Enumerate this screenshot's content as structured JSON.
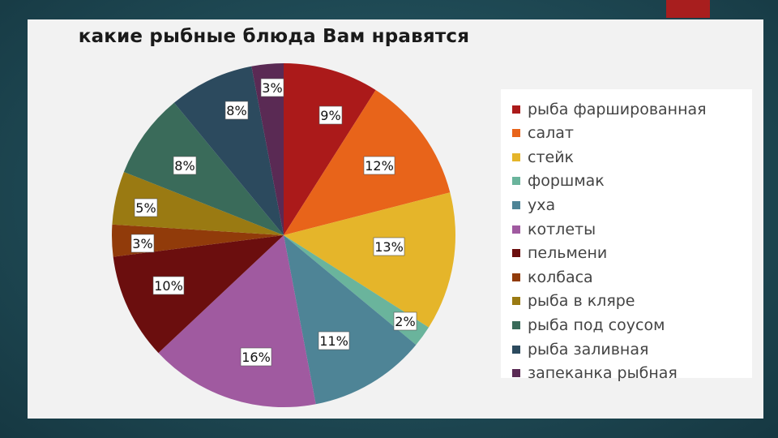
{
  "chart_data": {
    "type": "pie",
    "title": "какие рыбные блюда Вам нравятся",
    "slices": [
      {
        "name": "рыба фаршированная",
        "value": 9,
        "label": "9%",
        "color": "#ab1a1a"
      },
      {
        "name": "салат",
        "value": 12,
        "label": "12%",
        "color": "#e8641a"
      },
      {
        "name": "стейк",
        "value": 13,
        "label": "13%",
        "color": "#e5b52a"
      },
      {
        "name": "форшмак",
        "value": 2,
        "label": "2%",
        "color": "#6ab49c"
      },
      {
        "name": "уха",
        "value": 11,
        "label": "11%",
        "color": "#4e8496"
      },
      {
        "name": "котлеты",
        "value": 16,
        "label": "16%",
        "color": "#a05aa0"
      },
      {
        "name": "пельмени",
        "value": 10,
        "label": "10%",
        "color": "#6b0e0e"
      },
      {
        "name": "колбаса",
        "value": 3,
        "label": "3%",
        "color": "#913b0a"
      },
      {
        "name": "рыба в кляре",
        "value": 5,
        "label": "5%",
        "color": "#9a7a12"
      },
      {
        "name": "рыба под соусом",
        "value": 8,
        "label": "8%",
        "color": "#3a6b5a"
      },
      {
        "name": "рыба заливная",
        "value": 8,
        "label": "8%",
        "color": "#2c4a5e"
      },
      {
        "name": "запеканка рыбная",
        "value": 3,
        "label": "3%",
        "color": "#5a2a54"
      }
    ],
    "legend_position": "right"
  }
}
